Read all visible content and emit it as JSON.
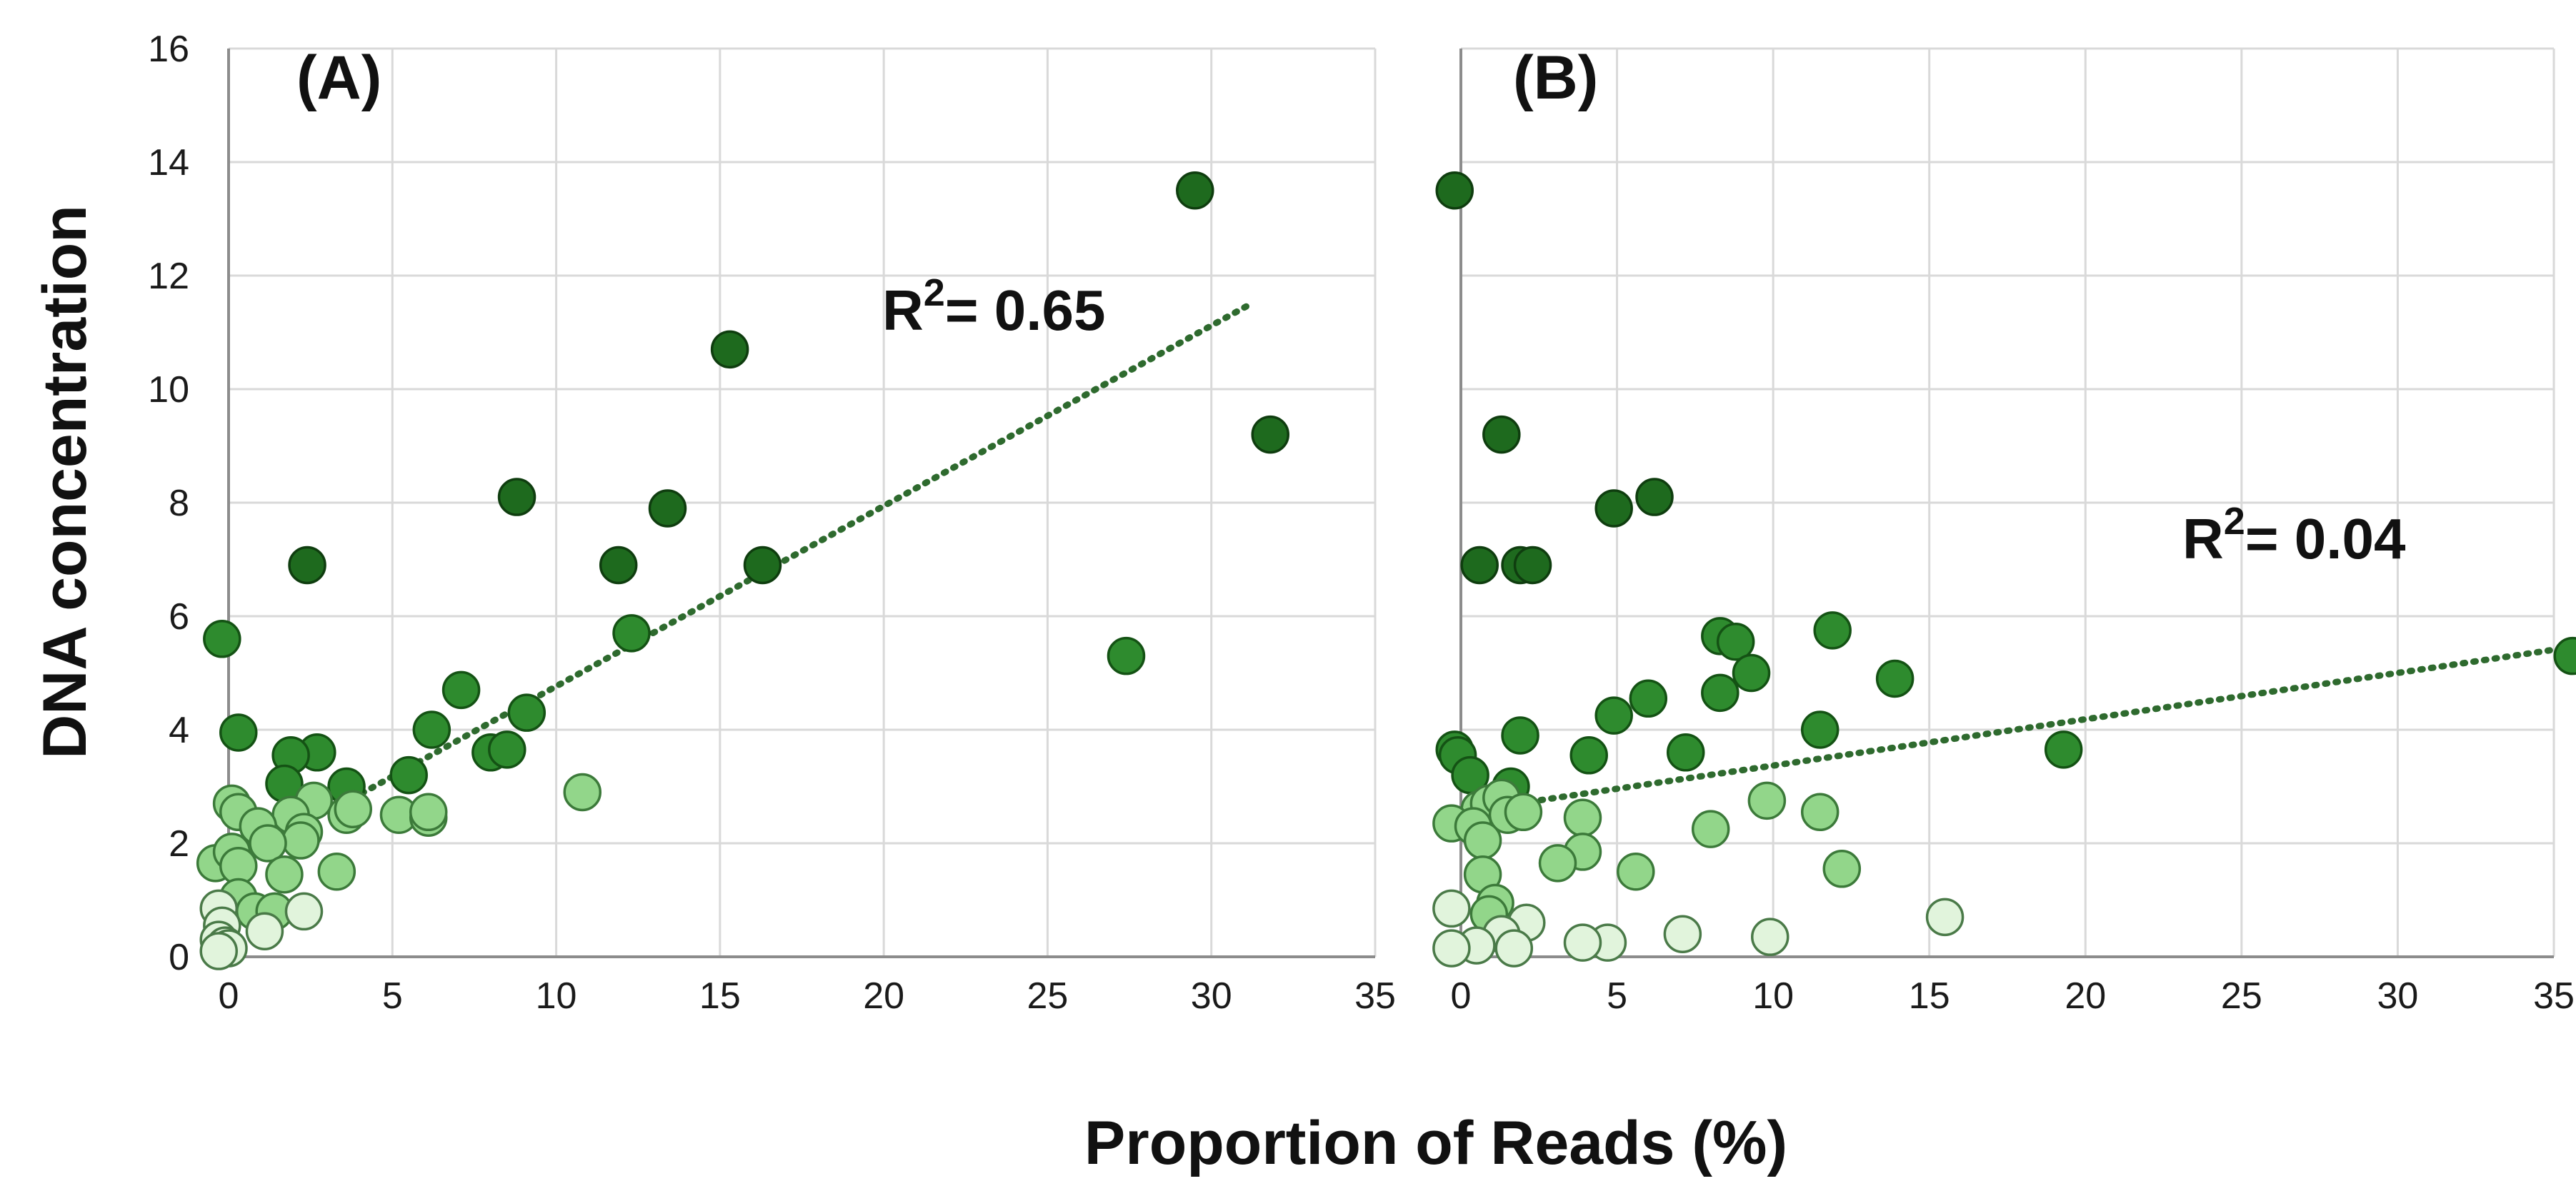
{
  "chart_data": {
    "type": "scatter",
    "ylabel": "DNA concentration",
    "xlabel": "Proportion of Reads (%)",
    "colors": {
      "dark": "#1e6a1e",
      "dark_stroke": "#0f3d0f",
      "medium": "#2e8b2e",
      "medium_stroke": "#145214",
      "light": "#92d68a",
      "light_stroke": "#3c7a3a",
      "pale": "#e1f4dc",
      "pale_stroke": "#4a7a48",
      "trend": "#2e6a2e",
      "grid": "#d9d9d9"
    },
    "panels": [
      {
        "label": "(A)",
        "r2_label": "R",
        "r2_sup": "2",
        "r2_value": "= 0.65",
        "xlim": [
          0,
          35
        ],
        "ylim": [
          0,
          16
        ],
        "xticks": [
          0,
          5,
          10,
          15,
          20,
          25,
          30,
          35
        ],
        "yticks": [
          0,
          2,
          4,
          6,
          8,
          10,
          12,
          14,
          16
        ],
        "trendline": {
          "x": [
            3.5,
            31.2
          ],
          "y": [
            2.7,
            11.5
          ]
        },
        "points": [
          {
            "x": 29.5,
            "y": 13.5,
            "c": "dark"
          },
          {
            "x": 15.3,
            "y": 10.7,
            "c": "dark"
          },
          {
            "x": 31.8,
            "y": 9.2,
            "c": "dark"
          },
          {
            "x": 8.8,
            "y": 8.1,
            "c": "dark"
          },
          {
            "x": 13.4,
            "y": 7.9,
            "c": "dark"
          },
          {
            "x": 2.4,
            "y": 6.9,
            "c": "dark"
          },
          {
            "x": 11.9,
            "y": 6.9,
            "c": "dark"
          },
          {
            "x": 16.3,
            "y": 6.9,
            "c": "dark"
          },
          {
            "x": -0.2,
            "y": 5.6,
            "c": "medium"
          },
          {
            "x": 12.3,
            "y": 5.7,
            "c": "medium"
          },
          {
            "x": 27.4,
            "y": 5.3,
            "c": "medium"
          },
          {
            "x": 7.1,
            "y": 4.7,
            "c": "medium"
          },
          {
            "x": 9.1,
            "y": 4.3,
            "c": "medium"
          },
          {
            "x": 6.2,
            "y": 4.0,
            "c": "medium"
          },
          {
            "x": 0.3,
            "y": 3.95,
            "c": "medium"
          },
          {
            "x": 8.0,
            "y": 3.6,
            "c": "medium"
          },
          {
            "x": 8.5,
            "y": 3.65,
            "c": "medium"
          },
          {
            "x": 2.7,
            "y": 3.6,
            "c": "medium"
          },
          {
            "x": 1.9,
            "y": 3.55,
            "c": "medium"
          },
          {
            "x": 5.5,
            "y": 3.2,
            "c": "medium"
          },
          {
            "x": 1.7,
            "y": 3.05,
            "c": "medium"
          },
          {
            "x": 3.6,
            "y": 3.0,
            "c": "medium"
          },
          {
            "x": 10.8,
            "y": 2.9,
            "c": "light"
          },
          {
            "x": 0.1,
            "y": 2.7,
            "c": "light"
          },
          {
            "x": 2.6,
            "y": 2.75,
            "c": "light"
          },
          {
            "x": 0.3,
            "y": 2.55,
            "c": "light"
          },
          {
            "x": 1.9,
            "y": 2.5,
            "c": "light"
          },
          {
            "x": 3.6,
            "y": 2.5,
            "c": "light"
          },
          {
            "x": 3.8,
            "y": 2.6,
            "c": "light"
          },
          {
            "x": 5.2,
            "y": 2.5,
            "c": "light"
          },
          {
            "x": 6.1,
            "y": 2.45,
            "c": "light"
          },
          {
            "x": 6.1,
            "y": 2.55,
            "c": "light"
          },
          {
            "x": 0.9,
            "y": 2.3,
            "c": "light"
          },
          {
            "x": 2.3,
            "y": 2.2,
            "c": "light"
          },
          {
            "x": 2.2,
            "y": 2.05,
            "c": "light"
          },
          {
            "x": 1.2,
            "y": 2.0,
            "c": "light"
          },
          {
            "x": -0.4,
            "y": 1.65,
            "c": "light"
          },
          {
            "x": 0.1,
            "y": 1.85,
            "c": "light"
          },
          {
            "x": 0.3,
            "y": 1.6,
            "c": "light"
          },
          {
            "x": 1.7,
            "y": 1.45,
            "c": "light"
          },
          {
            "x": 3.3,
            "y": 1.5,
            "c": "light"
          },
          {
            "x": 0.3,
            "y": 1.05,
            "c": "light"
          },
          {
            "x": 0.8,
            "y": 0.8,
            "c": "light"
          },
          {
            "x": 1.4,
            "y": 0.8,
            "c": "light"
          },
          {
            "x": 2.3,
            "y": 0.8,
            "c": "pale"
          },
          {
            "x": -0.3,
            "y": 0.85,
            "c": "pale"
          },
          {
            "x": -0.2,
            "y": 0.55,
            "c": "pale"
          },
          {
            "x": 1.1,
            "y": 0.45,
            "c": "pale"
          },
          {
            "x": -0.3,
            "y": 0.3,
            "c": "pale"
          },
          {
            "x": -0.1,
            "y": 0.2,
            "c": "pale"
          },
          {
            "x": 0.0,
            "y": 0.15,
            "c": "pale"
          },
          {
            "x": -0.3,
            "y": 0.1,
            "c": "pale"
          }
        ]
      },
      {
        "label": "(B)",
        "r2_label": "R",
        "r2_sup": "2",
        "r2_value": "= 0.04",
        "xlim": [
          0,
          35
        ],
        "ylim": [
          0,
          16
        ],
        "xticks": [
          0,
          5,
          10,
          15,
          20,
          25,
          30,
          35
        ],
        "yticks": [
          0,
          2,
          4,
          6,
          8,
          10,
          12,
          14,
          16
        ],
        "trendline": {
          "x": [
            1.2,
            35.5
          ],
          "y": [
            2.65,
            5.45
          ]
        },
        "points": [
          {
            "x": -0.2,
            "y": 13.5,
            "c": "dark"
          },
          {
            "x": 1.3,
            "y": 9.2,
            "c": "dark"
          },
          {
            "x": 6.2,
            "y": 8.1,
            "c": "dark"
          },
          {
            "x": 4.9,
            "y": 7.9,
            "c": "dark"
          },
          {
            "x": 0.6,
            "y": 6.9,
            "c": "dark"
          },
          {
            "x": 1.9,
            "y": 6.9,
            "c": "dark"
          },
          {
            "x": 2.3,
            "y": 6.9,
            "c": "dark"
          },
          {
            "x": 11.9,
            "y": 5.75,
            "c": "medium"
          },
          {
            "x": 8.3,
            "y": 5.65,
            "c": "medium"
          },
          {
            "x": 8.8,
            "y": 5.55,
            "c": "medium"
          },
          {
            "x": 35.6,
            "y": 5.3,
            "c": "medium"
          },
          {
            "x": 9.3,
            "y": 5.0,
            "c": "medium"
          },
          {
            "x": 13.9,
            "y": 4.9,
            "c": "medium"
          },
          {
            "x": 8.3,
            "y": 4.65,
            "c": "medium"
          },
          {
            "x": 6.0,
            "y": 4.55,
            "c": "medium"
          },
          {
            "x": 4.9,
            "y": 4.25,
            "c": "medium"
          },
          {
            "x": 11.5,
            "y": 4.0,
            "c": "medium"
          },
          {
            "x": 1.9,
            "y": 3.9,
            "c": "medium"
          },
          {
            "x": -0.2,
            "y": 3.65,
            "c": "medium"
          },
          {
            "x": 19.3,
            "y": 3.65,
            "c": "medium"
          },
          {
            "x": 7.2,
            "y": 3.6,
            "c": "medium"
          },
          {
            "x": -0.1,
            "y": 3.55,
            "c": "medium"
          },
          {
            "x": 4.1,
            "y": 3.55,
            "c": "medium"
          },
          {
            "x": 0.3,
            "y": 3.2,
            "c": "medium"
          },
          {
            "x": 1.6,
            "y": 3.0,
            "c": "medium"
          },
          {
            "x": 9.8,
            "y": 2.75,
            "c": "light"
          },
          {
            "x": 0.6,
            "y": 2.6,
            "c": "light"
          },
          {
            "x": 0.9,
            "y": 2.7,
            "c": "light"
          },
          {
            "x": 1.3,
            "y": 2.8,
            "c": "light"
          },
          {
            "x": 11.5,
            "y": 2.55,
            "c": "light"
          },
          {
            "x": 1.5,
            "y": 2.5,
            "c": "light"
          },
          {
            "x": 2.0,
            "y": 2.55,
            "c": "light"
          },
          {
            "x": 3.9,
            "y": 2.45,
            "c": "light"
          },
          {
            "x": -0.3,
            "y": 2.35,
            "c": "light"
          },
          {
            "x": 0.4,
            "y": 2.3,
            "c": "light"
          },
          {
            "x": 8.0,
            "y": 2.25,
            "c": "light"
          },
          {
            "x": 0.7,
            "y": 2.05,
            "c": "light"
          },
          {
            "x": 3.9,
            "y": 1.85,
            "c": "light"
          },
          {
            "x": 3.1,
            "y": 1.65,
            "c": "light"
          },
          {
            "x": 5.6,
            "y": 1.5,
            "c": "light"
          },
          {
            "x": 12.2,
            "y": 1.55,
            "c": "light"
          },
          {
            "x": 0.7,
            "y": 1.45,
            "c": "light"
          },
          {
            "x": 1.1,
            "y": 0.95,
            "c": "light"
          },
          {
            "x": 0.9,
            "y": 0.75,
            "c": "light"
          },
          {
            "x": -0.3,
            "y": 0.85,
            "c": "pale"
          },
          {
            "x": 15.5,
            "y": 0.7,
            "c": "pale"
          },
          {
            "x": 2.1,
            "y": 0.6,
            "c": "pale"
          },
          {
            "x": 1.3,
            "y": 0.4,
            "c": "pale"
          },
          {
            "x": 7.1,
            "y": 0.4,
            "c": "pale"
          },
          {
            "x": 9.9,
            "y": 0.35,
            "c": "pale"
          },
          {
            "x": 4.7,
            "y": 0.25,
            "c": "pale"
          },
          {
            "x": 3.9,
            "y": 0.25,
            "c": "pale"
          },
          {
            "x": 0.5,
            "y": 0.2,
            "c": "pale"
          },
          {
            "x": 1.7,
            "y": 0.15,
            "c": "pale"
          },
          {
            "x": -0.3,
            "y": 0.15,
            "c": "pale"
          }
        ]
      }
    ]
  }
}
